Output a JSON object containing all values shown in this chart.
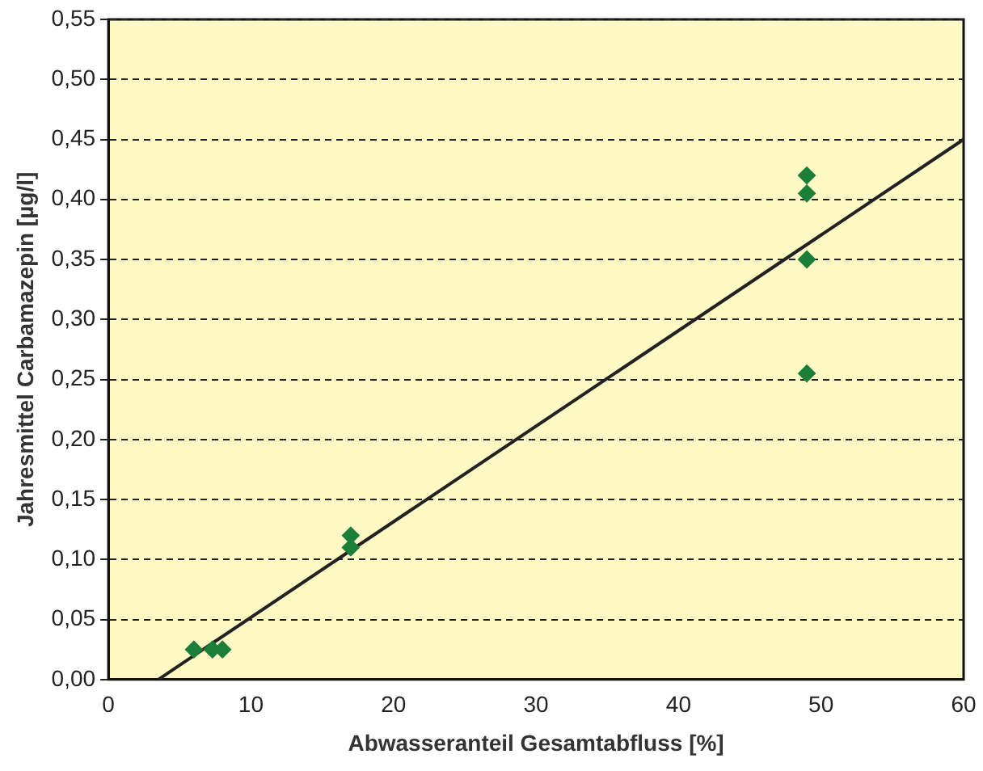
{
  "chart_data": {
    "type": "scatter",
    "xlabel": "Abwasseranteil Gesamtabfluss [%]",
    "ylabel": "Jahresmittel Carbamazepin [µg/l]",
    "xlim": [
      0,
      60
    ],
    "xticks": [
      0,
      10,
      20,
      30,
      40,
      50,
      60
    ],
    "ylim": [
      0,
      0.55
    ],
    "yticks": [
      {
        "value": 0,
        "label": "0,00"
      },
      {
        "value": 0.05,
        "label": "0,05"
      },
      {
        "value": 0.1,
        "label": "0,10"
      },
      {
        "value": 0.15,
        "label": "0,15"
      },
      {
        "value": 0.2,
        "label": "0,20"
      },
      {
        "value": 0.25,
        "label": "0,25"
      },
      {
        "value": 0.3,
        "label": "0,30"
      },
      {
        "value": 0.35,
        "label": "0,35"
      },
      {
        "value": 0.4,
        "label": "0,40"
      },
      {
        "value": 0.45,
        "label": "0,45"
      },
      {
        "value": 0.5,
        "label": "0,50"
      },
      {
        "value": 0.55,
        "label": "0,55"
      }
    ],
    "grid": "y",
    "legend": false,
    "series": [
      {
        "type": "scatter",
        "marker": "diamond",
        "color": "#1b7f3a",
        "x": [
          6,
          7.3,
          8,
          17,
          17,
          49,
          49,
          49,
          49
        ],
        "values": [
          0.025,
          0.025,
          0.025,
          0.11,
          0.12,
          0.42,
          0.405,
          0.35,
          0.255
        ]
      },
      {
        "type": "line",
        "marker": "none",
        "line_style": "solid",
        "color": "#222222",
        "x": [
          3.5,
          60
        ],
        "values": [
          0,
          0.45
        ]
      }
    ]
  }
}
